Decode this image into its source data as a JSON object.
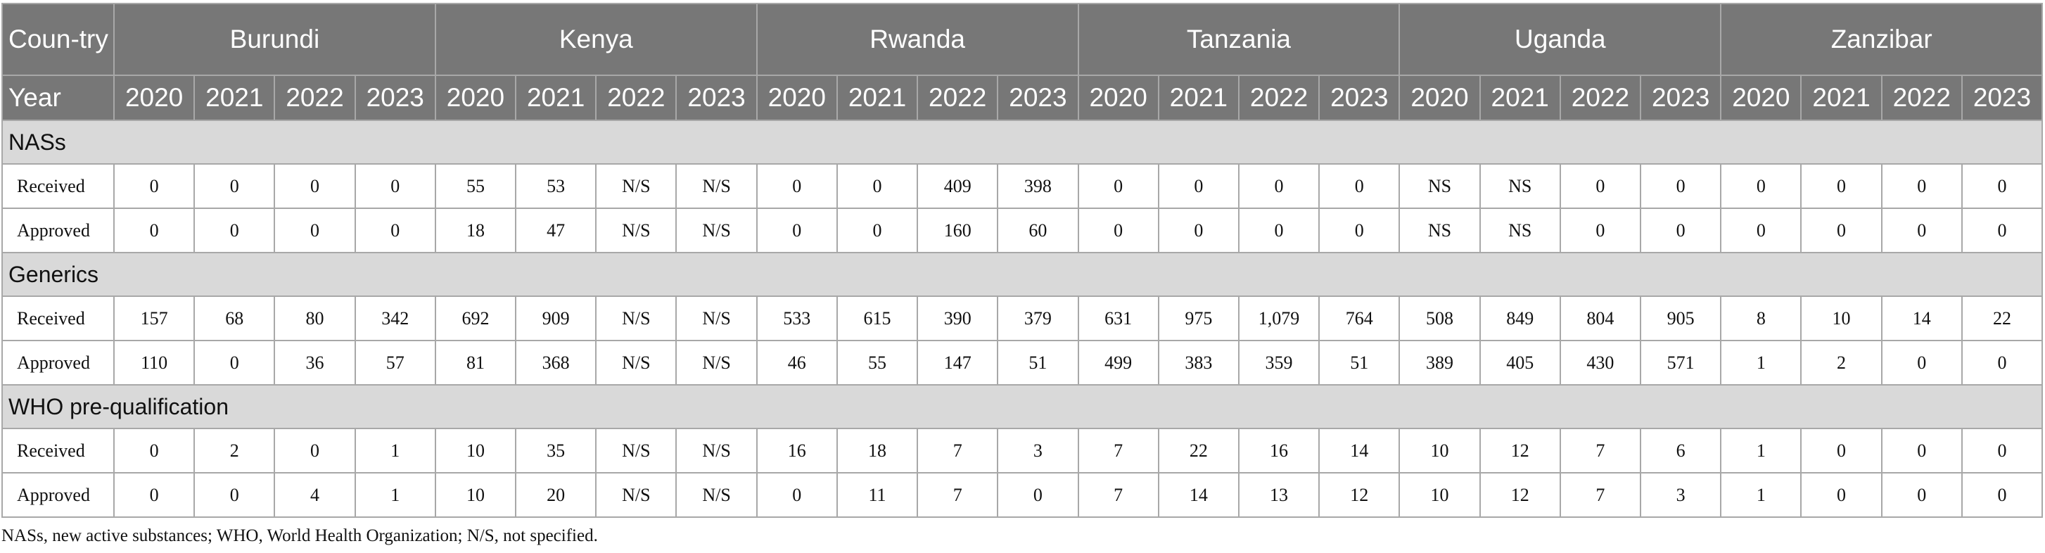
{
  "header": {
    "country_label": "Coun-try",
    "year_label": "Year",
    "countries": [
      {
        "name": "Burundi",
        "years": [
          "2020",
          "2021",
          "2022",
          "2023"
        ]
      },
      {
        "name": "Kenya",
        "years": [
          "2020",
          "2021",
          "2022",
          "2023"
        ]
      },
      {
        "name": "Rwanda",
        "years": [
          "2020",
          "2021",
          "2022",
          "2023"
        ]
      },
      {
        "name": "Tanzania",
        "years": [
          "2020",
          "2021",
          "2022",
          "2023"
        ]
      },
      {
        "name": "Uganda",
        "years": [
          "2020",
          "2021",
          "2022",
          "2023"
        ]
      },
      {
        "name": "Zanzibar",
        "years": [
          "2020",
          "2021",
          "2022",
          "2023"
        ]
      }
    ]
  },
  "sections": [
    {
      "title": "NASs",
      "rows": [
        {
          "label": "Received",
          "values": [
            "0",
            "0",
            "0",
            "0",
            "55",
            "53",
            "N/S",
            "N/S",
            "0",
            "0",
            "409",
            "398",
            "0",
            "0",
            "0",
            "0",
            "NS",
            "NS",
            "0",
            "0",
            "0",
            "0",
            "0",
            "0"
          ]
        },
        {
          "label": "Approved",
          "values": [
            "0",
            "0",
            "0",
            "0",
            "18",
            "47",
            "N/S",
            "N/S",
            "0",
            "0",
            "160",
            "60",
            "0",
            "0",
            "0",
            "0",
            "NS",
            "NS",
            "0",
            "0",
            "0",
            "0",
            "0",
            "0"
          ]
        }
      ]
    },
    {
      "title": "Generics",
      "rows": [
        {
          "label": "Received",
          "values": [
            "157",
            "68",
            "80",
            "342",
            "692",
            "909",
            "N/S",
            "N/S",
            "533",
            "615",
            "390",
            "379",
            "631",
            "975",
            "1,079",
            "764",
            "508",
            "849",
            "804",
            "905",
            "8",
            "10",
            "14",
            "22"
          ]
        },
        {
          "label": "Approved",
          "values": [
            "110",
            "0",
            "36",
            "57",
            "81",
            "368",
            "N/S",
            "N/S",
            "46",
            "55",
            "147",
            "51",
            "499",
            "383",
            "359",
            "51",
            "389",
            "405",
            "430",
            "571",
            "1",
            "2",
            "0",
            "0"
          ]
        }
      ]
    },
    {
      "title": "WHO pre-qualification",
      "rows": [
        {
          "label": "Received",
          "values": [
            "0",
            "2",
            "0",
            "1",
            "10",
            "35",
            "N/S",
            "N/S",
            "16",
            "18",
            "7",
            "3",
            "7",
            "22",
            "16",
            "14",
            "10",
            "12",
            "7",
            "6",
            "1",
            "0",
            "0",
            "0"
          ]
        },
        {
          "label": "Approved",
          "values": [
            "0",
            "0",
            "4",
            "1",
            "10",
            "20",
            "N/S",
            "N/S",
            "0",
            "11",
            "7",
            "0",
            "7",
            "14",
            "13",
            "12",
            "10",
            "12",
            "7",
            "3",
            "1",
            "0",
            "0",
            "0"
          ]
        }
      ]
    }
  ],
  "footnote": "NASs, new active substances; WHO, World Health Organization; N/S, not specified."
}
